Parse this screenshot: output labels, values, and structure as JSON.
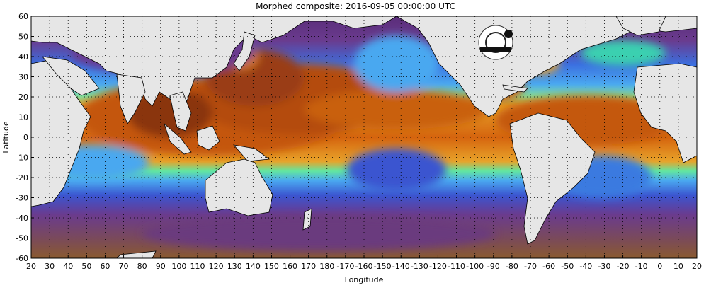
{
  "title": "Morphed composite: 2016-09-05 00:00:00 UTC",
  "map": {
    "xlabel": "Longitude",
    "ylabel": "Latitude",
    "x_ticks": [
      "20",
      "30",
      "40",
      "50",
      "60",
      "70",
      "80",
      "90",
      "100",
      "110",
      "120",
      "130",
      "140",
      "150",
      "160",
      "170",
      "180",
      "-170",
      "-160",
      "-150",
      "-140",
      "-130",
      "-120",
      "-110",
      "-100",
      "-90",
      "-80",
      "-70",
      "-60",
      "-50",
      "-40",
      "-30",
      "-20",
      "-10",
      "0",
      "10",
      "20"
    ],
    "y_ticks": [
      "60",
      "50",
      "40",
      "30",
      "20",
      "10",
      "0",
      "-10",
      "-20",
      "-30",
      "-40",
      "-50",
      "-60"
    ],
    "lon_range": [
      20,
      380
    ],
    "lat_range": [
      -60,
      60
    ],
    "grid": "dotted",
    "colors": {
      "land": "#e6e6e6",
      "coast": "#000000",
      "dry": "#7a3e8a",
      "low": "#4aa8f0",
      "mid": "#62e6a0",
      "high": "#e6720f",
      "very_high": "#7a2c10"
    },
    "logo": "cimss-logo"
  }
}
